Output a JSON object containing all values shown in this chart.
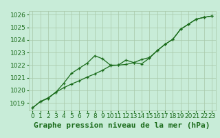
{
  "bg_color": "#c8ecd8",
  "grid_color": "#a8c8a8",
  "line_color": "#1a6b1a",
  "xlabel": "Graphe pression niveau de la mer (hPa)",
  "ylim": [
    1018.4,
    1026.3
  ],
  "xlim": [
    -0.5,
    23.5
  ],
  "yticks": [
    1019,
    1020,
    1021,
    1022,
    1023,
    1024,
    1025,
    1026
  ],
  "xticks": [
    0,
    1,
    2,
    3,
    4,
    5,
    6,
    7,
    8,
    9,
    10,
    11,
    12,
    13,
    14,
    15,
    16,
    17,
    18,
    19,
    20,
    21,
    22,
    23
  ],
  "series1_x": [
    0,
    1,
    2,
    3,
    4,
    5,
    6,
    7,
    8,
    9,
    10,
    11,
    12,
    13,
    14,
    15,
    16,
    17,
    18,
    19,
    20,
    21,
    22,
    23
  ],
  "series1_y": [
    1018.6,
    1019.1,
    1019.4,
    1019.85,
    1020.2,
    1020.5,
    1020.75,
    1021.05,
    1021.3,
    1021.6,
    1021.95,
    1022.0,
    1022.05,
    1022.2,
    1022.45,
    1022.6,
    1023.15,
    1023.65,
    1024.05,
    1024.85,
    1025.25,
    1025.65,
    1025.8,
    1025.9
  ],
  "series2_x": [
    0,
    1,
    2,
    3,
    4,
    5,
    6,
    7,
    8,
    9,
    10,
    11,
    12,
    13,
    14,
    15,
    16,
    17,
    18,
    19,
    20,
    21,
    22,
    23
  ],
  "series2_y": [
    1018.6,
    1019.1,
    1019.35,
    1019.85,
    1020.55,
    1021.35,
    1021.75,
    1022.15,
    1022.75,
    1022.5,
    1022.0,
    1022.0,
    1022.4,
    1022.2,
    1022.1,
    1022.55,
    1023.15,
    1023.65,
    1024.05,
    1024.85,
    1025.25,
    1025.65,
    1025.8,
    1025.9
  ],
  "tick_fontsize": 6.5,
  "xlabel_fontsize": 8
}
